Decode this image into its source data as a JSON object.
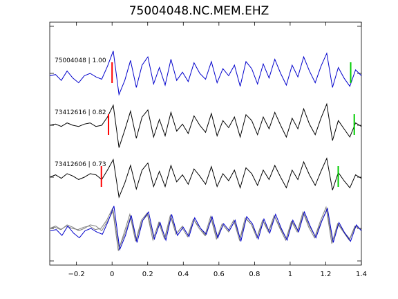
{
  "chart_data": {
    "type": "line",
    "title": "75004048.NC.MEM.EHZ",
    "xlabel": "",
    "ylabel": "",
    "xlim": [
      -0.35,
      1.4
    ],
    "x_ticks": [
      -0.2,
      0,
      0.2,
      0.4,
      0.6,
      0.8,
      1,
      1.2,
      1.4
    ],
    "x_tick_labels": [
      "−0.2",
      "0",
      "0.2",
      "0.4",
      "0.6",
      "0.8",
      "1",
      "1.2",
      "1.4"
    ],
    "grid": false,
    "colors": {
      "primary": "#0000cc",
      "secondary": "#000000",
      "overlay_gray": "#808080",
      "p_pick": "#ff0000",
      "s_pick": "#00cc00"
    },
    "traces": [
      {
        "label": "75004048 | 1.00",
        "color": "#0000cc",
        "p_pick": 0.0,
        "s_pick": 1.34,
        "values": [
          -0.1,
          -0.05,
          -0.3,
          0.1,
          -0.2,
          -0.4,
          -0.1,
          0.0,
          -0.15,
          -0.25,
          0.3,
          0.95,
          -0.9,
          -0.3,
          0.55,
          -0.6,
          0.35,
          0.7,
          -0.45,
          0.25,
          -0.5,
          0.6,
          -0.3,
          0.05,
          -0.35,
          0.45,
          0.0,
          -0.25,
          0.5,
          -0.4,
          0.2,
          -0.1,
          0.35,
          -0.55,
          0.5,
          0.2,
          -0.45,
          0.4,
          -0.2,
          0.6,
          0.0,
          -0.5,
          0.35,
          -0.15,
          0.7,
          0.1,
          -0.4,
          0.3,
          0.85,
          -0.6,
          0.25,
          -0.2,
          -0.55,
          0.15,
          -0.1
        ]
      },
      {
        "label": "73412616 | 0.82",
        "color": "#000000",
        "p_pick": -0.02,
        "s_pick": 1.36,
        "values": [
          0.0,
          0.05,
          -0.05,
          0.1,
          0.0,
          -0.05,
          0.05,
          0.1,
          -0.05,
          0.0,
          0.35,
          0.85,
          -0.95,
          -0.2,
          0.6,
          -0.55,
          0.35,
          0.65,
          -0.5,
          0.25,
          -0.45,
          0.55,
          -0.25,
          0.05,
          -0.35,
          0.4,
          0.0,
          -0.3,
          0.5,
          -0.45,
          0.2,
          -0.1,
          0.35,
          -0.5,
          0.45,
          0.2,
          -0.4,
          0.35,
          -0.15,
          0.55,
          0.0,
          -0.5,
          0.3,
          -0.15,
          0.7,
          0.05,
          -0.4,
          0.3,
          0.9,
          -0.65,
          0.2,
          -0.15,
          -0.5,
          0.1,
          -0.05
        ]
      },
      {
        "label": "73412606 | 0.73",
        "color": "#000000",
        "p_pick": -0.06,
        "s_pick": 1.27,
        "values": [
          0.0,
          0.1,
          -0.05,
          0.15,
          0.05,
          -0.1,
          0.0,
          0.15,
          0.1,
          -0.1,
          0.3,
          0.75,
          -0.85,
          -0.25,
          0.5,
          -0.5,
          0.3,
          0.6,
          -0.4,
          0.25,
          -0.4,
          0.5,
          -0.2,
          0.1,
          -0.3,
          0.35,
          0.05,
          -0.3,
          0.45,
          -0.4,
          0.15,
          -0.15,
          0.3,
          -0.45,
          0.4,
          0.15,
          -0.35,
          0.3,
          -0.1,
          0.5,
          0.0,
          -0.45,
          0.3,
          -0.1,
          0.65,
          0.1,
          -0.35,
          0.25,
          0.8,
          -0.55,
          0.2,
          -0.15,
          -0.45,
          0.1,
          -0.05
        ]
      }
    ],
    "overlay": {
      "label": "",
      "description": "",
      "uses_traces": [
        0,
        1,
        2
      ],
      "colors": [
        "#0000cc",
        "#808080",
        "#808080"
      ]
    }
  }
}
